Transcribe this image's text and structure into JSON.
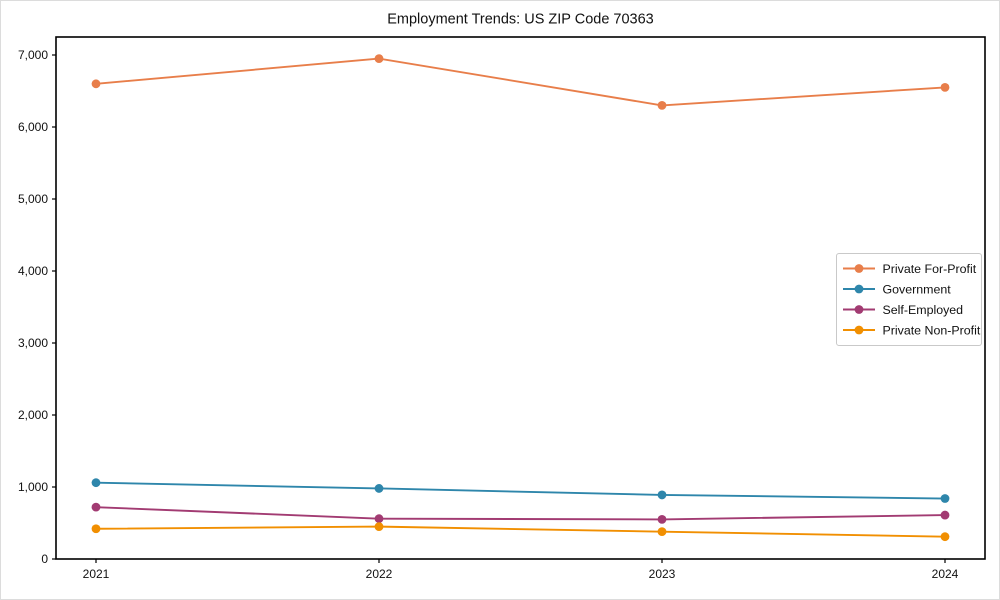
{
  "figure": {
    "title": "Employment Trends: US ZIP Code 70363",
    "background": "#ffffff"
  },
  "chart_data": {
    "type": "line",
    "title": "Employment Trends: US ZIP Code 70363",
    "categories": [
      "2021",
      "2022",
      "2023",
      "2024"
    ],
    "series": [
      {
        "name": "Private For-Profit",
        "color": "#E87E4A",
        "values": [
          6600,
          6950,
          6300,
          6550
        ]
      },
      {
        "name": "Government",
        "color": "#2E86AB",
        "values": [
          1060,
          980,
          890,
          840
        ]
      },
      {
        "name": "Self-Employed",
        "color": "#A23B72",
        "values": [
          720,
          560,
          550,
          610
        ]
      },
      {
        "name": "Private Non-Profit",
        "color": "#F18F01",
        "values": [
          420,
          450,
          380,
          310
        ]
      }
    ],
    "xlabel": "",
    "ylabel": "",
    "ylim": [
      0,
      7250
    ],
    "yticks": [
      0,
      1000,
      2000,
      3000,
      4000,
      5000,
      6000,
      7000
    ],
    "ytick_labels": [
      "0",
      "1,000",
      "2,000",
      "3,000",
      "4,000",
      "5,000",
      "6,000",
      "7,000"
    ],
    "grid": false,
    "marker": "circle",
    "legend": {
      "position": "center-right",
      "entries": [
        "Private For-Profit",
        "Government",
        "Self-Employed",
        "Private Non-Profit"
      ]
    },
    "axis_color": "#000000",
    "tick_label_color": "#000000",
    "legend_border_color": "#c9c9c9"
  }
}
